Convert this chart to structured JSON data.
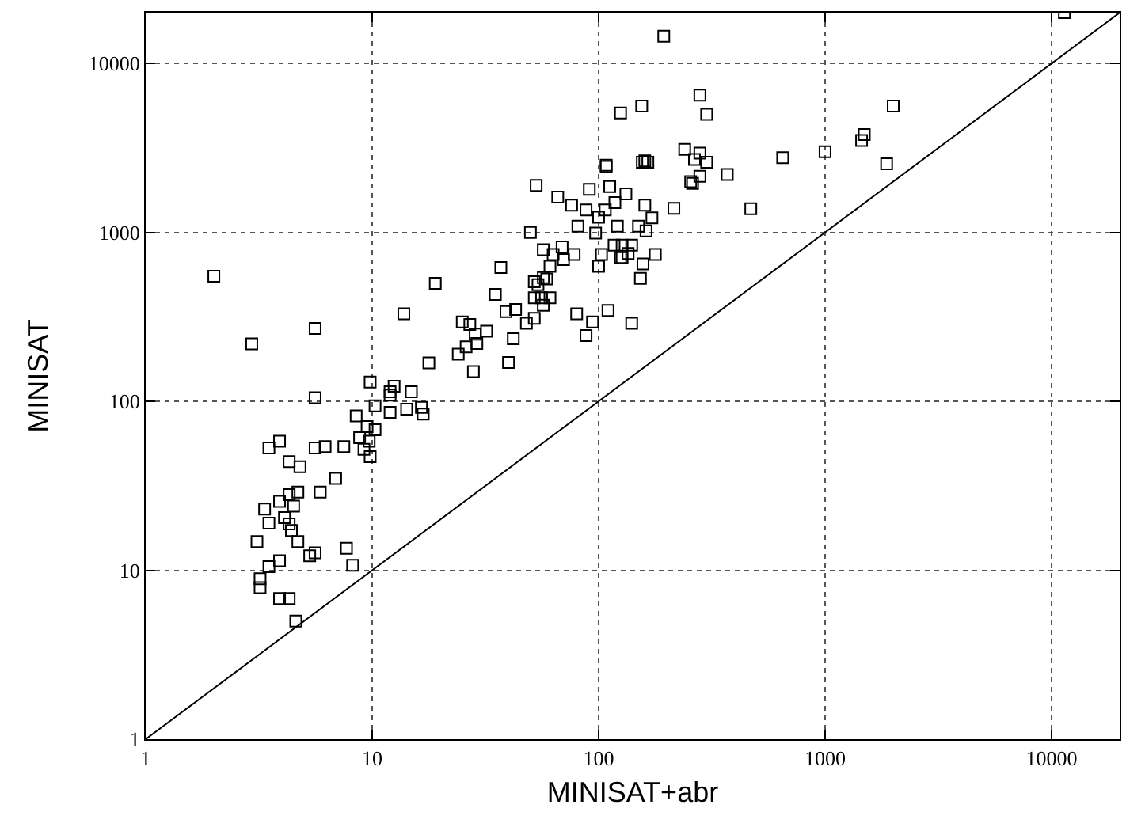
{
  "chart_data": {
    "type": "scatter",
    "xlabel": "MINISAT+abr",
    "ylabel": "MINISAT",
    "log": "xy",
    "grid": true,
    "xlim": [
      1,
      20000
    ],
    "ylim": [
      1,
      20000
    ],
    "xticks": [
      1,
      10,
      100,
      1000,
      10000
    ],
    "yticks": [
      1,
      10,
      100,
      1000,
      10000
    ],
    "series": [
      {
        "marker": "square",
        "color": "#000000",
        "x": [
          2.0,
          2.94,
          5.6,
          17.8,
          5.6,
          9.8,
          10.3,
          12,
          12,
          12.5,
          14.9,
          13.8,
          8.5,
          12,
          14.2,
          16.5,
          16.8,
          9.5,
          10.3,
          8.8,
          9.7,
          9.2,
          9.8,
          3.5,
          3.9,
          5.6,
          6.2,
          7.5,
          4.3,
          4.8,
          6.9,
          5.9,
          4.3,
          4.7,
          3.9,
          4.5,
          3.35,
          3.5,
          4.1,
          4.3,
          4.4,
          3.1,
          4.7,
          5.6,
          5.3,
          7.7,
          8.2,
          3.9,
          3.5,
          3.2,
          3.2,
          3.9,
          4.3,
          4.6,
          19,
          53,
          66,
          76,
          108,
          160,
          255,
          215,
          50,
          37,
          35,
          39,
          43,
          25,
          27,
          32,
          28.5,
          26,
          29,
          24,
          48,
          52,
          42,
          28,
          40,
          80,
          94,
          110,
          140,
          88,
          57,
          63,
          70,
          78,
          61,
          69,
          59,
          54,
          52,
          57,
          52,
          57,
          56,
          61,
          100,
          107,
          118,
          88,
          81,
          97,
          121,
          112,
          91,
          132,
          160,
          172,
          150,
          162,
          178,
          157,
          153,
          140,
          127,
          117,
          135,
          127,
          100,
          103,
          125,
          194,
          280,
          125,
          155,
          300,
          2000,
          1490,
          1450,
          1000,
          1870,
          650,
          470,
          370,
          240,
          280,
          265,
          300,
          260,
          280,
          108,
          156,
          165,
          11400
        ],
        "values": [
          550,
          219,
          270,
          169,
          105,
          130,
          94,
          114,
          109,
          123,
          114,
          330,
          82,
          86,
          90,
          92,
          84,
          71,
          68,
          61,
          58,
          52,
          47,
          53,
          58,
          53,
          54,
          54,
          44,
          41,
          35,
          29,
          28,
          29,
          25.6,
          24,
          23,
          19,
          20.5,
          18.8,
          17.2,
          14.8,
          14.8,
          12.7,
          12.2,
          13.5,
          10.7,
          11.4,
          10.5,
          8.9,
          7.9,
          6.8,
          6.8,
          5.0,
          500,
          1900,
          1620,
          1450,
          2500,
          2650,
          2000,
          1390,
          1000,
          620,
          430,
          340,
          350,
          295,
          285,
          260,
          250,
          210,
          220,
          190,
          290,
          310,
          235,
          150,
          170,
          330,
          295,
          345,
          290,
          245,
          790,
          740,
          690,
          740,
          630,
          820,
          530,
          490,
          410,
          370,
          510,
          540,
          410,
          410,
          1230,
          1360,
          1500,
          1360,
          1090,
          990,
          1090,
          1870,
          1800,
          1690,
          1450,
          1220,
          1090,
          1020,
          740,
          650,
          535,
          840,
          840,
          840,
          750,
          710,
          630,
          740,
          710,
          14500,
          6500,
          5100,
          5600,
          5000,
          5600,
          3800,
          3500,
          3000,
          2550,
          2770,
          1380,
          2200,
          3100,
          2950,
          2700,
          2600,
          1950,
          2150,
          2450,
          2600,
          2600,
          20000
        ]
      },
      {
        "type": "line",
        "color": "#000000",
        "x": [
          1,
          20000
        ],
        "values": [
          1,
          20000
        ]
      }
    ]
  }
}
